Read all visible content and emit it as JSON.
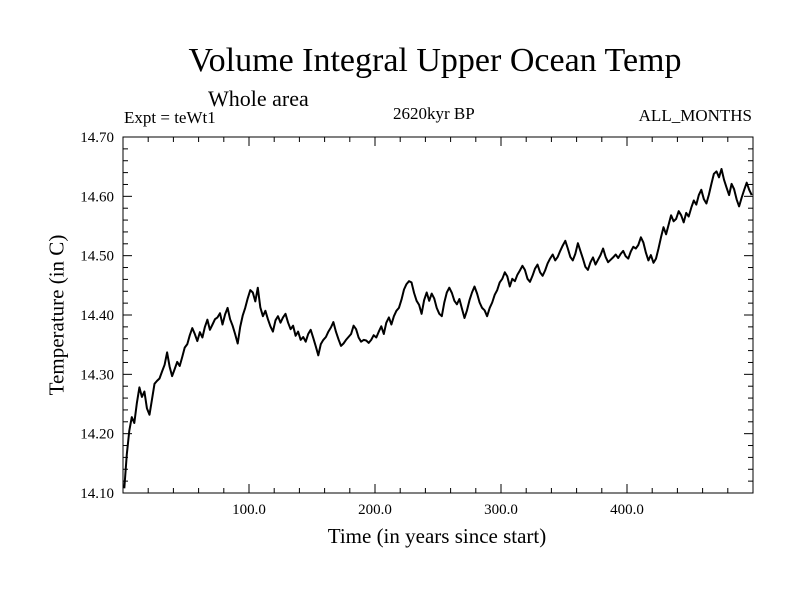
{
  "chart_data": {
    "type": "line",
    "title": "Volume Integral Upper Ocean Temp",
    "subtitle": "Whole area",
    "experiment_label": "Expt = teWt1",
    "period_label": "2620kyr BP",
    "months_label": "ALL_MONTHS",
    "xlabel": "Time (in years since start)",
    "ylabel": "Temperature (in C)",
    "xlim": [
      0,
      500
    ],
    "ylim": [
      14.1,
      14.7
    ],
    "x_ticks": [
      100,
      200,
      300,
      400
    ],
    "x_tick_labels": [
      "100.0",
      "200.0",
      "300.0",
      "400.0"
    ],
    "y_ticks": [
      14.1,
      14.2,
      14.3,
      14.4,
      14.5,
      14.6,
      14.7
    ],
    "y_tick_labels": [
      "14.10",
      "14.20",
      "14.30",
      "14.40",
      "14.50",
      "14.60",
      "14.70"
    ],
    "grid": false,
    "series": [
      {
        "name": "Volume Integral Upper Ocean Temp",
        "x": [
          1,
          3,
          5,
          7,
          9,
          11,
          13,
          15,
          17,
          19,
          21,
          23,
          25,
          27,
          29,
          31,
          33,
          35,
          37,
          39,
          41,
          43,
          45,
          47,
          49,
          51,
          53,
          55,
          57,
          59,
          61,
          63,
          65,
          67,
          69,
          71,
          73,
          75,
          77,
          79,
          81,
          83,
          85,
          87,
          89,
          91,
          93,
          95,
          97,
          99,
          101,
          103,
          105,
          107,
          109,
          111,
          113,
          115,
          117,
          119,
          121,
          123,
          125,
          127,
          129,
          131,
          133,
          135,
          137,
          139,
          141,
          143,
          145,
          147,
          149,
          151,
          153,
          155,
          157,
          159,
          161,
          163,
          165,
          167,
          169,
          171,
          173,
          175,
          177,
          179,
          181,
          183,
          185,
          187,
          189,
          191,
          193,
          195,
          197,
          199,
          201,
          203,
          205,
          207,
          209,
          211,
          213,
          215,
          217,
          219,
          221,
          223,
          225,
          227,
          229,
          231,
          233,
          235,
          237,
          239,
          241,
          243,
          245,
          247,
          249,
          251,
          253,
          255,
          257,
          259,
          261,
          263,
          265,
          267,
          269,
          271,
          273,
          275,
          277,
          279,
          281,
          283,
          285,
          287,
          289,
          291,
          293,
          295,
          297,
          299,
          301,
          303,
          305,
          307,
          309,
          311,
          313,
          315,
          317,
          319,
          321,
          323,
          325,
          327,
          329,
          331,
          333,
          335,
          337,
          339,
          341,
          343,
          345,
          347,
          349,
          351,
          353,
          355,
          357,
          359,
          361,
          363,
          365,
          367,
          369,
          371,
          373,
          375,
          377,
          379,
          381,
          383,
          385,
          387,
          389,
          391,
          393,
          395,
          397,
          399,
          401,
          403,
          405,
          407,
          409,
          411,
          413,
          415,
          417,
          419,
          421,
          423,
          425,
          427,
          429,
          431,
          433,
          435,
          437,
          439,
          441,
          443,
          445,
          447,
          449,
          451,
          453,
          455,
          457,
          459,
          461,
          463,
          465,
          467,
          469,
          471,
          473,
          475,
          477,
          479,
          481,
          483,
          485,
          487,
          489,
          491,
          493,
          495,
          497,
          499
        ],
        "y": [
          14.108,
          14.165,
          14.205,
          14.228,
          14.218,
          14.252,
          14.278,
          14.262,
          14.271,
          14.243,
          14.232,
          14.258,
          14.284,
          14.289,
          14.293,
          14.305,
          14.316,
          14.337,
          14.313,
          14.297,
          14.309,
          14.321,
          14.314,
          14.329,
          14.345,
          14.351,
          14.366,
          14.378,
          14.368,
          14.356,
          14.371,
          14.362,
          14.38,
          14.392,
          14.375,
          14.384,
          14.393,
          14.396,
          14.403,
          14.384,
          14.401,
          14.412,
          14.393,
          14.382,
          14.368,
          14.352,
          14.38,
          14.399,
          14.412,
          14.428,
          14.442,
          14.438,
          14.423,
          14.446,
          14.413,
          14.398,
          14.407,
          14.393,
          14.381,
          14.372,
          14.391,
          14.398,
          14.387,
          14.396,
          14.402,
          14.387,
          14.376,
          14.382,
          14.365,
          14.372,
          14.358,
          14.363,
          14.355,
          14.368,
          14.375,
          14.361,
          14.347,
          14.332,
          14.351,
          14.358,
          14.363,
          14.372,
          14.379,
          14.388,
          14.372,
          14.359,
          14.348,
          14.352,
          14.358,
          14.363,
          14.368,
          14.382,
          14.376,
          14.362,
          14.355,
          14.358,
          14.357,
          14.353,
          14.358,
          14.366,
          14.362,
          14.372,
          14.381,
          14.368,
          14.387,
          14.396,
          14.384,
          14.398,
          14.407,
          14.412,
          14.426,
          14.443,
          14.452,
          14.457,
          14.455,
          14.437,
          14.424,
          14.417,
          14.402,
          14.425,
          14.438,
          14.424,
          14.436,
          14.428,
          14.412,
          14.402,
          14.398,
          14.421,
          14.438,
          14.446,
          14.437,
          14.424,
          14.418,
          14.427,
          14.411,
          14.395,
          14.408,
          14.425,
          14.438,
          14.448,
          14.436,
          14.421,
          14.412,
          14.408,
          14.398,
          14.412,
          14.421,
          14.434,
          14.442,
          14.455,
          14.461,
          14.472,
          14.465,
          14.448,
          14.461,
          14.457,
          14.468,
          14.475,
          14.483,
          14.476,
          14.461,
          14.456,
          14.466,
          14.478,
          14.485,
          14.472,
          14.466,
          14.475,
          14.487,
          14.495,
          14.502,
          14.492,
          14.498,
          14.508,
          14.517,
          14.525,
          14.512,
          14.498,
          14.492,
          14.503,
          14.521,
          14.508,
          14.495,
          14.481,
          14.476,
          14.489,
          14.497,
          14.485,
          14.493,
          14.501,
          14.512,
          14.498,
          14.489,
          14.493,
          14.497,
          14.502,
          14.496,
          14.503,
          14.508,
          14.499,
          14.495,
          14.507,
          14.515,
          14.512,
          14.518,
          14.531,
          14.522,
          14.505,
          14.492,
          14.501,
          14.488,
          14.495,
          14.512,
          14.531,
          14.548,
          14.536,
          14.552,
          14.568,
          14.558,
          14.562,
          14.575,
          14.568,
          14.556,
          14.572,
          14.566,
          14.581,
          14.593,
          14.586,
          14.602,
          14.611,
          14.595,
          14.588,
          14.603,
          14.621,
          14.638,
          14.642,
          14.632,
          14.646,
          14.628,
          14.615,
          14.602,
          14.621,
          14.612,
          14.595,
          14.583,
          14.598,
          14.611,
          14.623,
          14.611,
          14.602
        ]
      }
    ]
  }
}
